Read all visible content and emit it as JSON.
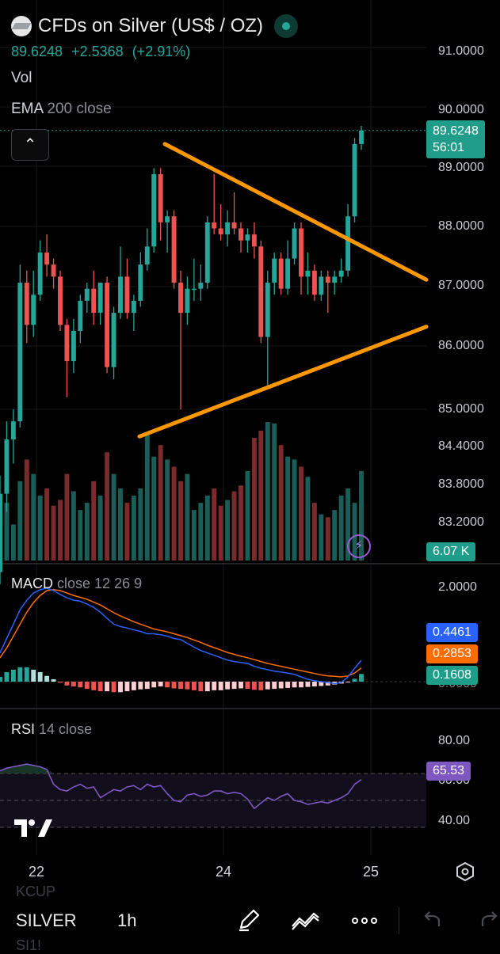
{
  "header": {
    "title": "CFDs on Silver (US$ / OZ)",
    "price": "89.6248",
    "change": "+2.5368",
    "change_pct": "(+2.91%)",
    "vol_label": "Vol",
    "ema_name": "EMA",
    "ema_params": "200 close"
  },
  "price_axis": [
    "91.0000",
    "90.0000",
    "89.0000",
    "88.0000",
    "87.0000",
    "86.0000",
    "85.0000",
    "84.4000",
    "83.8000",
    "83.2000"
  ],
  "tags": {
    "last_price": "89.6248",
    "countdown": "56:01",
    "volume": "6.07 K",
    "macd_line": "0.4461",
    "signal_line": "0.2853",
    "histogram": "0.1608",
    "rsi": "65.53"
  },
  "macd": {
    "name": "MACD",
    "params": "close 12 26 9",
    "axis": [
      "2.0000",
      "0.0000"
    ]
  },
  "rsi": {
    "name": "RSI",
    "params": "14 close",
    "axis": [
      "80.00",
      "60.00",
      "40.00"
    ]
  },
  "x_axis": [
    "22",
    "24",
    "25"
  ],
  "toolbar": {
    "ghost_above": "KCUP",
    "symbol": "SILVER",
    "timeframe": "1h",
    "ghost_below": "SI1!"
  },
  "colors": {
    "up": "#26a69a",
    "down": "#ef5350",
    "trendline": "#ff9800",
    "macd": "#2962ff",
    "signal": "#ff6d00",
    "rsi": "#7e57c2"
  },
  "chart_data": {
    "type": "candlestick",
    "ylim": [
      82.7,
      91.3
    ],
    "candles": [
      {
        "o": 82.3,
        "h": 83.9,
        "l": 82.1,
        "c": 83.6
      },
      {
        "o": 83.6,
        "h": 84.8,
        "l": 83.3,
        "c": 84.5
      },
      {
        "o": 84.5,
        "h": 85.0,
        "l": 84.1,
        "c": 84.8
      },
      {
        "o": 84.8,
        "h": 87.4,
        "l": 84.7,
        "c": 87.1
      },
      {
        "o": 87.1,
        "h": 87.3,
        "l": 86.1,
        "c": 86.4
      },
      {
        "o": 86.4,
        "h": 87.3,
        "l": 86.2,
        "c": 86.9
      },
      {
        "o": 86.9,
        "h": 87.8,
        "l": 86.8,
        "c": 87.6
      },
      {
        "o": 87.6,
        "h": 87.9,
        "l": 87.2,
        "c": 87.4
      },
      {
        "o": 87.4,
        "h": 87.5,
        "l": 87.0,
        "c": 87.2
      },
      {
        "o": 87.2,
        "h": 87.3,
        "l": 86.3,
        "c": 86.4
      },
      {
        "o": 86.4,
        "h": 86.5,
        "l": 85.2,
        "c": 85.8
      },
      {
        "o": 85.8,
        "h": 86.5,
        "l": 85.6,
        "c": 86.3
      },
      {
        "o": 86.3,
        "h": 86.9,
        "l": 86.1,
        "c": 86.8
      },
      {
        "o": 86.8,
        "h": 87.1,
        "l": 86.6,
        "c": 87.0
      },
      {
        "o": 87.0,
        "h": 87.3,
        "l": 86.4,
        "c": 86.6
      },
      {
        "o": 86.6,
        "h": 87.1,
        "l": 86.4,
        "c": 87.1
      },
      {
        "o": 87.1,
        "h": 87.2,
        "l": 85.6,
        "c": 85.7
      },
      {
        "o": 85.7,
        "h": 86.7,
        "l": 85.5,
        "c": 86.6
      },
      {
        "o": 86.6,
        "h": 87.7,
        "l": 86.5,
        "c": 87.2
      },
      {
        "o": 87.2,
        "h": 87.5,
        "l": 86.5,
        "c": 86.6
      },
      {
        "o": 86.6,
        "h": 86.9,
        "l": 86.3,
        "c": 86.8
      },
      {
        "o": 86.8,
        "h": 87.6,
        "l": 86.7,
        "c": 87.4
      },
      {
        "o": 87.4,
        "h": 88.0,
        "l": 87.3,
        "c": 87.7
      },
      {
        "o": 87.7,
        "h": 89.0,
        "l": 87.6,
        "c": 88.9
      },
      {
        "o": 88.9,
        "h": 89.0,
        "l": 87.8,
        "c": 88.1
      },
      {
        "o": 88.1,
        "h": 88.3,
        "l": 87.6,
        "c": 88.2
      },
      {
        "o": 88.2,
        "h": 88.3,
        "l": 87.0,
        "c": 87.1
      },
      {
        "o": 87.1,
        "h": 87.3,
        "l": 85.0,
        "c": 86.6
      },
      {
        "o": 86.6,
        "h": 87.2,
        "l": 86.4,
        "c": 87.0
      },
      {
        "o": 87.0,
        "h": 87.5,
        "l": 86.8,
        "c": 87.0
      },
      {
        "o": 87.0,
        "h": 87.4,
        "l": 86.8,
        "c": 87.1
      },
      {
        "o": 87.1,
        "h": 88.2,
        "l": 87.0,
        "c": 88.1
      },
      {
        "o": 88.1,
        "h": 88.9,
        "l": 87.9,
        "c": 88.0
      },
      {
        "o": 88.0,
        "h": 88.4,
        "l": 87.8,
        "c": 87.9
      },
      {
        "o": 87.9,
        "h": 88.3,
        "l": 87.7,
        "c": 88.1
      },
      {
        "o": 88.1,
        "h": 88.6,
        "l": 87.9,
        "c": 88.0
      },
      {
        "o": 88.0,
        "h": 88.1,
        "l": 87.6,
        "c": 87.8
      },
      {
        "o": 87.8,
        "h": 88.0,
        "l": 87.6,
        "c": 87.9
      },
      {
        "o": 87.9,
        "h": 88.1,
        "l": 87.5,
        "c": 87.7
      },
      {
        "o": 87.7,
        "h": 87.8,
        "l": 86.1,
        "c": 86.2
      },
      {
        "o": 86.2,
        "h": 87.3,
        "l": 85.4,
        "c": 87.1
      },
      {
        "o": 87.1,
        "h": 87.6,
        "l": 86.9,
        "c": 87.5
      },
      {
        "o": 87.5,
        "h": 87.6,
        "l": 86.9,
        "c": 87.0
      },
      {
        "o": 87.0,
        "h": 87.8,
        "l": 86.9,
        "c": 87.5
      },
      {
        "o": 87.5,
        "h": 88.1,
        "l": 87.4,
        "c": 88.0
      },
      {
        "o": 88.0,
        "h": 88.1,
        "l": 86.9,
        "c": 87.2
      },
      {
        "o": 87.2,
        "h": 87.6,
        "l": 86.9,
        "c": 87.3
      },
      {
        "o": 87.3,
        "h": 87.4,
        "l": 86.8,
        "c": 86.9
      },
      {
        "o": 86.9,
        "h": 87.3,
        "l": 86.8,
        "c": 87.2
      },
      {
        "o": 87.2,
        "h": 87.3,
        "l": 86.6,
        "c": 87.1
      },
      {
        "o": 87.1,
        "h": 87.3,
        "l": 86.9,
        "c": 87.2
      },
      {
        "o": 87.2,
        "h": 87.5,
        "l": 87.1,
        "c": 87.3
      },
      {
        "o": 87.3,
        "h": 88.4,
        "l": 87.2,
        "c": 88.2
      },
      {
        "o": 88.2,
        "h": 89.5,
        "l": 88.1,
        "c": 89.4
      },
      {
        "o": 89.4,
        "h": 89.7,
        "l": 89.3,
        "c": 89.6248
      }
    ],
    "volume": [
      30,
      40,
      25,
      55,
      70,
      60,
      45,
      50,
      38,
      42,
      60,
      48,
      35,
      40,
      55,
      45,
      75,
      60,
      50,
      40,
      45,
      50,
      88,
      72,
      80,
      70,
      65,
      55,
      60,
      35,
      40,
      45,
      50,
      38,
      42,
      48,
      52,
      62,
      85,
      90,
      96,
      95,
      80,
      72,
      70,
      65,
      58,
      40,
      32,
      30,
      35,
      45,
      50,
      40,
      62
    ],
    "macd_line": [
      0.6,
      0.9,
      1.2,
      1.5,
      1.7,
      1.85,
      1.92,
      1.95,
      1.9,
      1.82,
      1.75,
      1.7,
      1.68,
      1.62,
      1.55,
      1.45,
      1.32,
      1.2,
      1.15,
      1.12,
      1.08,
      1.05,
      1.0,
      1.0,
      0.98,
      0.95,
      0.9,
      0.88,
      0.8,
      0.72,
      0.65,
      0.6,
      0.55,
      0.5,
      0.45,
      0.42,
      0.4,
      0.38,
      0.32,
      0.28,
      0.25,
      0.22,
      0.2,
      0.18,
      0.15,
      0.1,
      0.05,
      0.02,
      0.0,
      -0.02,
      -0.04,
      -0.02,
      0.1,
      0.28,
      0.4461
    ],
    "signal_line": [
      0.5,
      0.7,
      0.95,
      1.2,
      1.45,
      1.65,
      1.8,
      1.9,
      1.92,
      1.9,
      1.85,
      1.8,
      1.76,
      1.72,
      1.66,
      1.6,
      1.52,
      1.44,
      1.37,
      1.31,
      1.25,
      1.2,
      1.15,
      1.1,
      1.07,
      1.04,
      1.0,
      0.96,
      0.92,
      0.87,
      0.82,
      0.76,
      0.71,
      0.66,
      0.61,
      0.57,
      0.53,
      0.5,
      0.46,
      0.42,
      0.38,
      0.35,
      0.32,
      0.29,
      0.26,
      0.23,
      0.2,
      0.17,
      0.14,
      0.12,
      0.11,
      0.1,
      0.12,
      0.18,
      0.2853
    ],
    "histogram": [
      0.1,
      0.2,
      0.25,
      0.3,
      0.3,
      0.25,
      0.2,
      0.12,
      0.05,
      -0.02,
      -0.08,
      -0.1,
      -0.12,
      -0.15,
      -0.18,
      -0.2,
      -0.2,
      -0.22,
      -0.22,
      -0.2,
      -0.18,
      -0.16,
      -0.15,
      -0.12,
      -0.1,
      -0.12,
      -0.14,
      -0.15,
      -0.16,
      -0.18,
      -0.2,
      -0.2,
      -0.18,
      -0.18,
      -0.16,
      -0.15,
      -0.14,
      -0.15,
      -0.17,
      -0.18,
      -0.16,
      -0.15,
      -0.14,
      -0.13,
      -0.12,
      -0.12,
      -0.11,
      -0.1,
      -0.09,
      -0.08,
      -0.06,
      -0.04,
      -0.01,
      0.06,
      0.1608
    ],
    "rsi": [
      72,
      74,
      75,
      76,
      77,
      76,
      75,
      73,
      62,
      58,
      57,
      60,
      62,
      59,
      60,
      52,
      55,
      58,
      57,
      60,
      61,
      58,
      62,
      60,
      61,
      55,
      50,
      49,
      54,
      55,
      53,
      54,
      57,
      57,
      55,
      56,
      55,
      51,
      44,
      48,
      52,
      50,
      53,
      55,
      50,
      49,
      47,
      48,
      49,
      48,
      50,
      52,
      55,
      62,
      65.53
    ]
  }
}
